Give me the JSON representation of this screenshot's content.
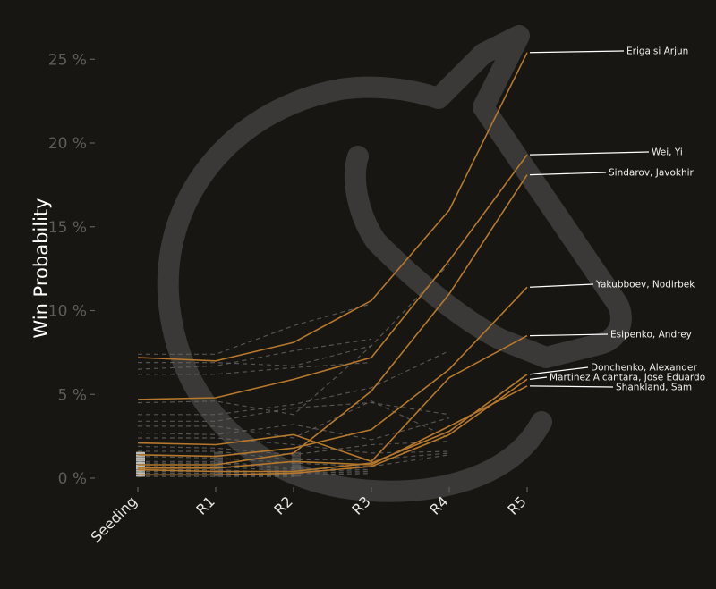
{
  "chart_data": {
    "type": "line",
    "ylabel": "Win Probability",
    "ylim": [
      0,
      26.5
    ],
    "categories": [
      "Seeding",
      "R1",
      "R2",
      "R3",
      "R4",
      "R5"
    ],
    "y_ticks": [
      0,
      5,
      10,
      15,
      20,
      25
    ],
    "y_tick_labels": [
      "0 %",
      "5 %",
      "10 %",
      "15 %",
      "20 %",
      "25 %"
    ],
    "grid": false,
    "series": [
      {
        "name": "Erigaisi Arjun",
        "values": [
          7.2,
          7.0,
          8.1,
          10.6,
          16.0,
          25.4
        ]
      },
      {
        "name": "Wei, Yi",
        "values": [
          4.7,
          4.8,
          5.9,
          7.2,
          13.0,
          19.3
        ]
      },
      {
        "name": "Sindarov, Javokhir",
        "values": [
          0.8,
          0.8,
          1.5,
          5.2,
          11.0,
          18.1
        ]
      },
      {
        "name": "Yakubboev, Nodirbek",
        "values": [
          1.4,
          1.3,
          1.8,
          2.9,
          6.5,
          11.4
        ]
      },
      {
        "name": "Esipenko, Andrey",
        "values": [
          2.1,
          2.0,
          2.6,
          1.0,
          6.0,
          8.5
        ]
      },
      {
        "name": "Donchenko, Alexander",
        "values": [
          0.5,
          0.4,
          0.4,
          0.9,
          2.8,
          6.2
        ]
      },
      {
        "name": "Martinez Alcantara, Jose Eduardo",
        "values": [
          0.2,
          0.2,
          0.3,
          0.7,
          2.6,
          5.9
        ]
      },
      {
        "name": "Shankland, Sam",
        "values": [
          0.6,
          0.6,
          1.0,
          0.8,
          3.1,
          5.5
        ]
      }
    ],
    "other_series": [
      [
        7.4,
        7.4,
        9.1,
        10.4
      ],
      [
        6.9,
        6.9,
        6.7,
        7.9
      ],
      [
        6.5,
        6.7,
        7.6,
        8.3
      ],
      [
        6.2,
        6.2,
        6.6,
        6.9
      ],
      [
        4.5,
        4.6,
        3.8,
        7.9,
        12.8
      ],
      [
        3.8,
        3.8,
        4.4,
        5.4,
        7.6
      ],
      [
        3.4,
        3.4,
        4.2,
        4.5,
        3.8
      ],
      [
        3.1,
        3.1,
        2.4,
        4.6,
        2.4
      ],
      [
        2.7,
        2.6,
        3.2,
        2.3,
        3.6
      ],
      [
        2.4,
        2.4,
        2.0,
        1.5,
        1.6
      ],
      [
        1.9,
        1.8,
        1.4,
        2.0,
        2.2
      ],
      [
        1.6,
        1.6,
        1.1,
        1.1,
        1.5
      ],
      [
        1.3,
        1.2,
        0.9,
        0.7,
        1.4
      ],
      [
        1.0,
        1.0,
        0.6,
        0.5
      ],
      [
        0.9,
        0.9,
        0.5,
        0.4
      ],
      [
        0.7,
        0.7,
        0.4,
        0.3
      ],
      [
        0.5,
        0.5,
        0.3,
        0.2
      ],
      [
        0.4,
        0.4,
        0.2
      ],
      [
        0.3,
        0.3,
        0.2
      ],
      [
        0.2,
        0.2,
        0.1
      ],
      [
        0.1,
        0.1,
        0.1
      ]
    ],
    "colors": {
      "background": "#181613",
      "highlight": "#b5782c",
      "other": "#6a6866",
      "label_text": "#f2f0ec",
      "label_leader": "#ffffff",
      "axis_tick": "#5f5d59",
      "x_tick": "#e6e4df",
      "watermark": "#3a3937"
    },
    "watermark_icon": "knight-icon"
  }
}
